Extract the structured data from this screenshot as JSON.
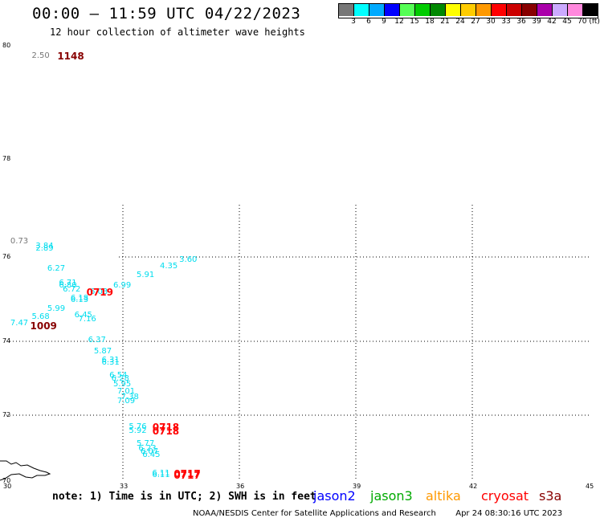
{
  "header": {
    "title": "00:00 – 11:59 UTC 04/22/2023",
    "subtitle": "12 hour collection of altimeter wave heights"
  },
  "color_scale": {
    "swatches": [
      "#777777",
      "#00ffff",
      "#00aaff",
      "#0000ff",
      "#55ff55",
      "#00cc00",
      "#008800",
      "#ffff00",
      "#ffcc00",
      "#ff9900",
      "#ff0000",
      "#cc0000",
      "#880000",
      "#aa00aa",
      "#ccaaff",
      "#ff88dd",
      "#000000"
    ],
    "labels": [
      "3",
      "6",
      "9",
      "12",
      "15",
      "18",
      "21",
      "24",
      "27",
      "30",
      "33",
      "36",
      "39",
      "42",
      "45",
      "70 (ft)"
    ]
  },
  "axes": {
    "lat_labels": [
      "80",
      "78",
      "76",
      "74",
      "72",
      "70"
    ],
    "lon_labels": [
      "30",
      "33",
      "36",
      "39",
      "42",
      "45"
    ],
    "lat_values": [
      80,
      78,
      76,
      74,
      72,
      70
    ],
    "lon_values": [
      30,
      33,
      36,
      39,
      42,
      45
    ]
  },
  "observations": [
    {
      "text": "2.50",
      "lat": 79.8,
      "lon": 30.9,
      "color": "#777777"
    },
    {
      "text": "0.73",
      "lat": 76.3,
      "lon": 30.35,
      "color": "#777777"
    },
    {
      "text": "3.60",
      "lat": 75.9,
      "lon": 34.7,
      "color": "#00ddee"
    },
    {
      "text": "4.35",
      "lat": 75.75,
      "lon": 34.2,
      "color": "#00ddee"
    },
    {
      "text": "5.91",
      "lat": 75.55,
      "lon": 33.6,
      "color": "#00ddee"
    },
    {
      "text": "3.84",
      "lat": 76.2,
      "lon": 31.0,
      "color": "#00ddee"
    },
    {
      "text": "2.89",
      "lat": 76.15,
      "lon": 31.0,
      "color": "#00ddee"
    },
    {
      "text": "6.27",
      "lat": 75.7,
      "lon": 31.3,
      "color": "#00ddee"
    },
    {
      "text": "6.71",
      "lat": 75.35,
      "lon": 31.6,
      "color": "#00ddee"
    },
    {
      "text": "6.80",
      "lat": 75.3,
      "lon": 31.6,
      "color": "#00ddee"
    },
    {
      "text": "6.72",
      "lat": 75.2,
      "lon": 31.7,
      "color": "#00ddee"
    },
    {
      "text": "6.99",
      "lat": 75.3,
      "lon": 33.0,
      "color": "#00ddee"
    },
    {
      "text": "6.03",
      "lat": 75.15,
      "lon": 32.4,
      "color": "#00ddee"
    },
    {
      "text": "6.18",
      "lat": 75.0,
      "lon": 31.9,
      "color": "#00ddee"
    },
    {
      "text": "6.13",
      "lat": 74.95,
      "lon": 31.9,
      "color": "#00ddee"
    },
    {
      "text": "5.99",
      "lat": 74.75,
      "lon": 31.3,
      "color": "#00ddee"
    },
    {
      "text": "5.68",
      "lat": 74.55,
      "lon": 30.9,
      "color": "#00ddee"
    },
    {
      "text": "6.45",
      "lat": 74.6,
      "lon": 32.0,
      "color": "#00ddee"
    },
    {
      "text": "7.16",
      "lat": 74.5,
      "lon": 32.1,
      "color": "#00ddee"
    },
    {
      "text": "7.47",
      "lat": 74.4,
      "lon": 30.35,
      "color": "#00ddee"
    },
    {
      "text": "6.37",
      "lat": 74.0,
      "lon": 32.35,
      "color": "#00ddee"
    },
    {
      "text": "5.87",
      "lat": 73.7,
      "lon": 32.5,
      "color": "#00ddee"
    },
    {
      "text": "6.31",
      "lat": 73.45,
      "lon": 32.7,
      "color": "#00ddee"
    },
    {
      "text": "6.31",
      "lat": 73.4,
      "lon": 32.7,
      "color": "#00ddee"
    },
    {
      "text": "6.54",
      "lat": 73.05,
      "lon": 32.9,
      "color": "#00ddee"
    },
    {
      "text": "6.28",
      "lat": 72.95,
      "lon": 32.95,
      "color": "#00ddee"
    },
    {
      "text": "5.95",
      "lat": 72.8,
      "lon": 33.0,
      "color": "#00ddee"
    },
    {
      "text": "7.01",
      "lat": 72.6,
      "lon": 33.1,
      "color": "#00ddee"
    },
    {
      "text": "7.38",
      "lat": 72.45,
      "lon": 33.2,
      "color": "#00ddee"
    },
    {
      "text": "7.09",
      "lat": 72.35,
      "lon": 33.1,
      "color": "#00ddee"
    },
    {
      "text": "5.76",
      "lat": 71.6,
      "lon": 33.4,
      "color": "#00ddee"
    },
    {
      "text": "5.92",
      "lat": 71.5,
      "lon": 33.4,
      "color": "#00ddee"
    },
    {
      "text": "5.77",
      "lat": 71.1,
      "lon": 33.6,
      "color": "#00ddee"
    },
    {
      "text": "6.23",
      "lat": 70.95,
      "lon": 33.65,
      "color": "#00ddee"
    },
    {
      "text": "6.07",
      "lat": 70.85,
      "lon": 33.7,
      "color": "#00ddee"
    },
    {
      "text": "6.45",
      "lat": 70.75,
      "lon": 33.75,
      "color": "#00ddee"
    },
    {
      "text": "6.11",
      "lat": 70.2,
      "lon": 34.0,
      "color": "#00ddee"
    },
    {
      "text": "6.11",
      "lat": 70.15,
      "lon": 34.0,
      "color": "#00ddee"
    }
  ],
  "time_labels": [
    {
      "text": "1148",
      "lat": 79.8,
      "lon": 31.6,
      "color": "#880000"
    },
    {
      "text": "0719",
      "lat": 75.15,
      "lon": 32.35,
      "color": "#ff0000"
    },
    {
      "text": "1009",
      "lat": 74.35,
      "lon": 30.9,
      "color": "#880000"
    },
    {
      "text": "0718",
      "lat": 71.6,
      "lon": 34.05,
      "color": "#ff0000"
    },
    {
      "text": "0718",
      "lat": 71.5,
      "lon": 34.05,
      "color": "#ff0000"
    },
    {
      "text": "0717",
      "lat": 70.2,
      "lon": 34.6,
      "color": "#ff0000"
    },
    {
      "text": "0717",
      "lat": 70.15,
      "lon": 34.6,
      "color": "#ff0000"
    }
  ],
  "note": "note: 1) Time is in UTC; 2) SWH is in feet",
  "satellites": [
    {
      "name": "jason2",
      "color": "#0000ff"
    },
    {
      "name": "jason3",
      "color": "#00aa00"
    },
    {
      "name": "altika",
      "color": "#ff9900"
    },
    {
      "name": "cryosat",
      "color": "#ff0000"
    },
    {
      "name": "s3a",
      "color": "#880000"
    }
  ],
  "footer": {
    "org": "NOAA/NESDIS Center for Satellite Applications and Research",
    "timestamp": "Apr 24 08:30:16 UTC 2023"
  }
}
